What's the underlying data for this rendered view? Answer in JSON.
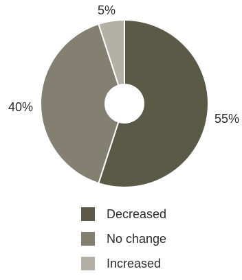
{
  "chart_data": {
    "type": "pie",
    "donut": true,
    "categories": [
      "Decreased",
      "No change",
      "Increased"
    ],
    "values": [
      55,
      40,
      5
    ],
    "value_labels": [
      "55%",
      "40%",
      "5%"
    ],
    "colors": [
      "#5a5a47",
      "#838071",
      "#b3b0a5"
    ],
    "slice_border_color": "#ffffff",
    "legend_placement": "bottom",
    "title": ""
  }
}
